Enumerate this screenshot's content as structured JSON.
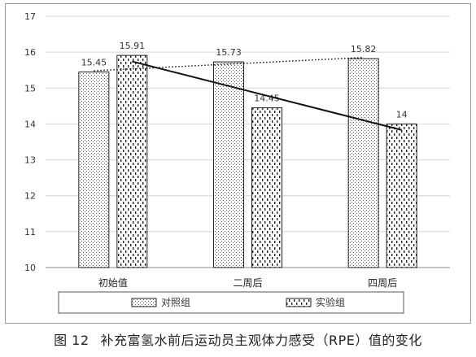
{
  "chart_data": {
    "type": "bar",
    "categories": [
      "初始值",
      "二周后",
      "四周后"
    ],
    "series": [
      {
        "name": "对照组",
        "values": [
          15.45,
          15.73,
          15.82
        ],
        "labels": [
          "15.45",
          "15.73",
          "15.82"
        ]
      },
      {
        "name": "实验组",
        "values": [
          15.91,
          14.45,
          14
        ],
        "labels": [
          "15.91",
          "14.45",
          "14"
        ]
      }
    ],
    "ylim": [
      10,
      17
    ],
    "yticks": [
      10,
      11,
      12,
      13,
      14,
      15,
      16,
      17
    ],
    "grid": true,
    "legend": "bottom",
    "trendlines": [
      {
        "series": "对照组",
        "style": "dotted"
      },
      {
        "series": "实验组",
        "style": "solid"
      }
    ]
  },
  "caption": {
    "number": "图 12",
    "text": "补充富氢水前后运动员主观体力感受（RPE）值的变化"
  }
}
